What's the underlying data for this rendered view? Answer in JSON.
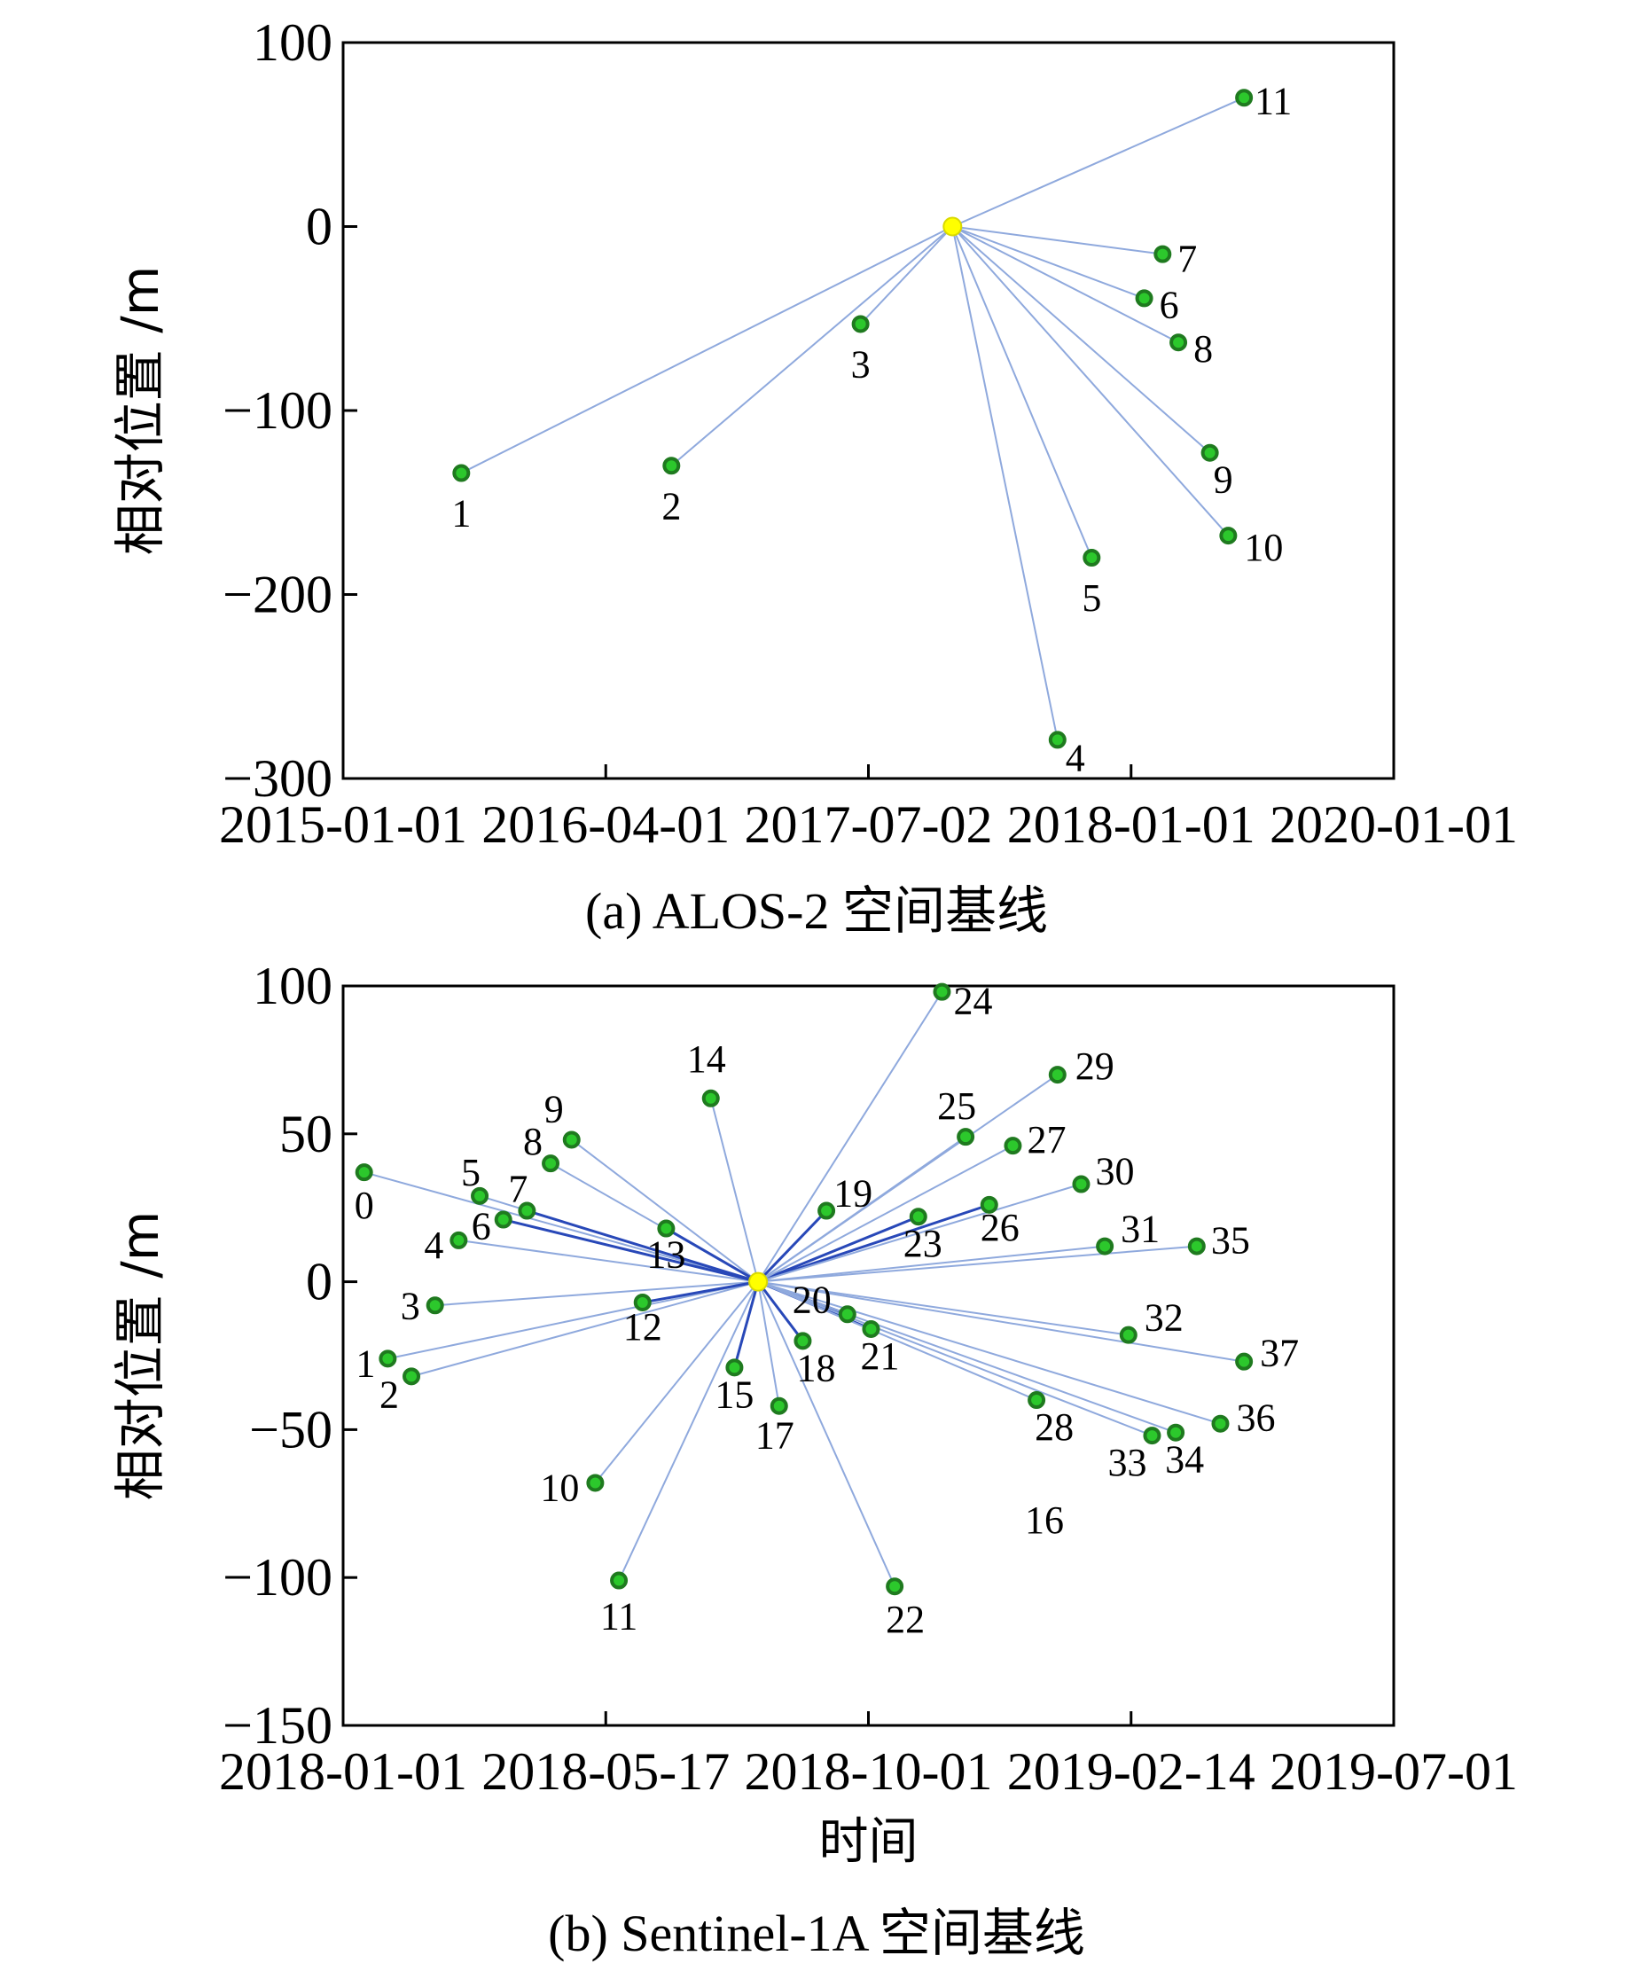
{
  "colors": {
    "point": "#2cc82c",
    "point_stroke": "#1f7a1f",
    "reference": "#ffff00",
    "edge": "#8fa9dd",
    "edge_bold": "#2848b8"
  },
  "chart_data": [
    {
      "type": "scatter",
      "title": "",
      "caption": "(a) ALOS-2 空间基线",
      "ylabel": "相对位置 /m",
      "xlabel": "",
      "x_ticks": [
        "2015-01-01",
        "2016-04-01",
        "2017-07-02",
        "2018-01-01",
        "2020-01-01"
      ],
      "x_tick_values": [
        0,
        1,
        2,
        3,
        4
      ],
      "xlim": [
        0,
        4
      ],
      "y_ticks": [
        "100",
        "0",
        "−100",
        "−200",
        "−300"
      ],
      "y_tick_values": [
        100,
        0,
        -100,
        -200,
        -300
      ],
      "ylim": [
        -300,
        100
      ],
      "reference": {
        "x": 2.32,
        "y": 0
      },
      "points": [
        {
          "label": "1",
          "x": 0.45,
          "y": -134
        },
        {
          "label": "2",
          "x": 1.25,
          "y": -130
        },
        {
          "label": "3",
          "x": 1.97,
          "y": -53
        },
        {
          "label": "4",
          "x": 2.72,
          "y": -279
        },
        {
          "label": "5",
          "x": 2.85,
          "y": -180
        },
        {
          "label": "6",
          "x": 3.05,
          "y": -39
        },
        {
          "label": "7",
          "x": 3.12,
          "y": -15
        },
        {
          "label": "8",
          "x": 3.18,
          "y": -63
        },
        {
          "label": "9",
          "x": 3.3,
          "y": -123
        },
        {
          "label": "10",
          "x": 3.37,
          "y": -168
        },
        {
          "label": "11",
          "x": 3.43,
          "y": 70
        }
      ]
    },
    {
      "type": "scatter",
      "title": "",
      "caption": "(b) Sentinel-1A 空间基线",
      "ylabel": "相对位置 /m",
      "xlabel": "时间",
      "x_ticks": [
        "2018-01-01",
        "2018-05-17",
        "2018-10-01",
        "2019-02-14",
        "2019-07-01"
      ],
      "x_tick_values": [
        0,
        1,
        2,
        3,
        4
      ],
      "xlim": [
        0,
        4
      ],
      "y_ticks": [
        "100",
        "50",
        "0",
        "−50",
        "−100",
        "−150"
      ],
      "y_tick_values": [
        100,
        50,
        0,
        -50,
        -100,
        -150
      ],
      "ylim": [
        -150,
        100
      ],
      "reference": {
        "x": 1.58,
        "y": 0
      },
      "points": [
        {
          "label": "0",
          "x": 0.08,
          "y": 37
        },
        {
          "label": "1",
          "x": 0.17,
          "y": -26
        },
        {
          "label": "2",
          "x": 0.26,
          "y": -32
        },
        {
          "label": "3",
          "x": 0.35,
          "y": -8
        },
        {
          "label": "4",
          "x": 0.44,
          "y": 14
        },
        {
          "label": "5",
          "x": 0.52,
          "y": 29
        },
        {
          "label": "6",
          "x": 0.61,
          "y": 21
        },
        {
          "label": "7",
          "x": 0.7,
          "y": 24
        },
        {
          "label": "8",
          "x": 0.79,
          "y": 40
        },
        {
          "label": "9",
          "x": 0.87,
          "y": 48
        },
        {
          "label": "10",
          "x": 0.96,
          "y": -68
        },
        {
          "label": "11",
          "x": 1.05,
          "y": -101
        },
        {
          "label": "12",
          "x": 1.14,
          "y": -7
        },
        {
          "label": "13",
          "x": 1.23,
          "y": 18
        },
        {
          "label": "14",
          "x": 1.4,
          "y": 62
        },
        {
          "label": "15",
          "x": 1.49,
          "y": -29
        },
        {
          "label": "16",
          "x": 2.67,
          "y": -85,
          "label_only": true
        },
        {
          "label": "17",
          "x": 1.66,
          "y": -42
        },
        {
          "label": "18",
          "x": 1.75,
          "y": -20
        },
        {
          "label": "19",
          "x": 1.84,
          "y": 24
        },
        {
          "label": "20",
          "x": 1.92,
          "y": -11
        },
        {
          "label": "21",
          "x": 2.01,
          "y": -16
        },
        {
          "label": "22",
          "x": 2.1,
          "y": -103
        },
        {
          "label": "23",
          "x": 2.19,
          "y": 22
        },
        {
          "label": "24",
          "x": 2.28,
          "y": 98
        },
        {
          "label": "25",
          "x": 2.37,
          "y": 49
        },
        {
          "label": "26",
          "x": 2.46,
          "y": 26
        },
        {
          "label": "27",
          "x": 2.55,
          "y": 46
        },
        {
          "label": "28",
          "x": 2.64,
          "y": -40
        },
        {
          "label": "29",
          "x": 2.72,
          "y": 70
        },
        {
          "label": "30",
          "x": 2.81,
          "y": 33
        },
        {
          "label": "31",
          "x": 2.9,
          "y": 12
        },
        {
          "label": "32",
          "x": 2.99,
          "y": -18
        },
        {
          "label": "33",
          "x": 3.08,
          "y": -52
        },
        {
          "label": "34",
          "x": 3.17,
          "y": -51
        },
        {
          "label": "35",
          "x": 3.25,
          "y": 12
        },
        {
          "label": "36",
          "x": 3.34,
          "y": -48
        },
        {
          "label": "37",
          "x": 3.43,
          "y": -27
        }
      ]
    }
  ]
}
